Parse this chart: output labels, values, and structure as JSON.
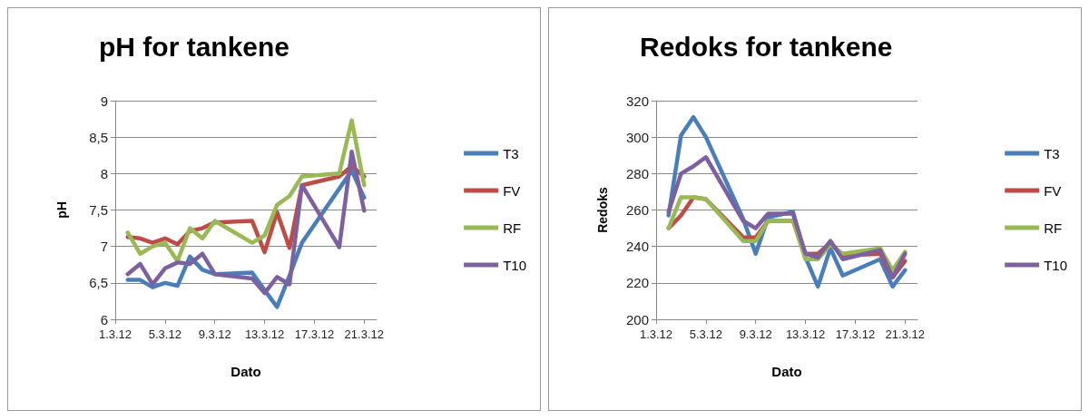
{
  "chart_data": [
    {
      "type": "line",
      "title": "pH for tankene",
      "xlabel": "Dato",
      "ylabel": "pH",
      "xlim": [
        "--03-01",
        "--03-22"
      ],
      "xticks": [
        {
          "value": "--03-01",
          "label": "1.3.12"
        },
        {
          "value": "--03-05",
          "label": "5.3.12"
        },
        {
          "value": "--03-09",
          "label": "9.3.12"
        },
        {
          "value": "--03-13",
          "label": "13.3.12"
        },
        {
          "value": "--03-17",
          "label": "17.3.12"
        },
        {
          "value": "--03-21",
          "label": "21.3.12"
        }
      ],
      "ylim": [
        6,
        9
      ],
      "yticks": [
        6,
        {
          "value": 6.5,
          "label": "6,5"
        },
        7,
        {
          "value": 7.5,
          "label": "7,5"
        },
        8,
        {
          "value": 8.5,
          "label": "8,5"
        },
        9
      ],
      "grid": "y",
      "legend": "right",
      "marker": "none",
      "line_style": "solid",
      "series": [
        {
          "name": "T3",
          "color": "#4a7ebb",
          "x": [
            "--03-02",
            "--03-03",
            "--03-04",
            "--03-05",
            "--03-06",
            "--03-07",
            "--03-08",
            "--03-09",
            "--03-12",
            "--03-13",
            "--03-14",
            "--03-15",
            "--03-16",
            "--03-20",
            "--03-21"
          ],
          "values": [
            6.54,
            6.54,
            6.44,
            6.5,
            6.46,
            6.86,
            6.68,
            6.62,
            6.64,
            6.4,
            6.17,
            6.6,
            7.05,
            8.04,
            7.67
          ]
        },
        {
          "name": "FV",
          "color": "#be4b48",
          "x": [
            "--03-02",
            "--03-03",
            "--03-04",
            "--03-05",
            "--03-06",
            "--03-07",
            "--03-08",
            "--03-09",
            "--03-12",
            "--03-13",
            "--03-14",
            "--03-15",
            "--03-16",
            "--03-19",
            "--03-20",
            "--03-21"
          ],
          "values": [
            7.13,
            7.11,
            7.05,
            7.11,
            7.03,
            7.21,
            7.25,
            7.33,
            7.35,
            6.92,
            7.47,
            6.98,
            7.84,
            7.96,
            8.1,
            7.96
          ]
        },
        {
          "name": "RF",
          "color": "#98b954",
          "x": [
            "--03-02",
            "--03-03",
            "--03-04",
            "--03-05",
            "--03-06",
            "--03-07",
            "--03-08",
            "--03-09",
            "--03-12",
            "--03-13",
            "--03-14",
            "--03-15",
            "--03-16",
            "--03-19",
            "--03-20",
            "--03-21"
          ],
          "values": [
            7.19,
            6.9,
            7.0,
            7.05,
            6.8,
            7.25,
            7.11,
            7.35,
            7.05,
            7.15,
            7.57,
            7.69,
            7.96,
            8.0,
            8.73,
            7.84
          ]
        },
        {
          "name": "T10",
          "color": "#7d60a0",
          "x": [
            "--03-02",
            "--03-03",
            "--03-04",
            "--03-05",
            "--03-06",
            "--03-07",
            "--03-08",
            "--03-09",
            "--03-12",
            "--03-13",
            "--03-14",
            "--03-15",
            "--03-16",
            "--03-19",
            "--03-20",
            "--03-21"
          ],
          "values": [
            6.62,
            6.76,
            6.48,
            6.7,
            6.78,
            6.76,
            6.9,
            6.62,
            6.56,
            6.36,
            6.58,
            6.48,
            7.84,
            6.99,
            8.3,
            7.49
          ]
        }
      ]
    },
    {
      "type": "line",
      "title": "Redoks for tankene",
      "xlabel": "Dato",
      "ylabel": "Redoks",
      "xlim": [
        "--03-01",
        "--03-22"
      ],
      "xticks": [
        {
          "value": "--03-01",
          "label": "1.3.12"
        },
        {
          "value": "--03-05",
          "label": "5.3.12"
        },
        {
          "value": "--03-09",
          "label": "9.3.12"
        },
        {
          "value": "--03-13",
          "label": "13.3.12"
        },
        {
          "value": "--03-17",
          "label": "17.3.12"
        },
        {
          "value": "--03-21",
          "label": "21.3.12"
        }
      ],
      "ylim": [
        200,
        320
      ],
      "yticks": [
        200,
        220,
        240,
        260,
        280,
        300,
        320
      ],
      "grid": "y",
      "legend": "right",
      "marker": "none",
      "line_style": "solid",
      "series": [
        {
          "name": "T3",
          "color": "#4a7ebb",
          "x": [
            "--03-02",
            "--03-03",
            "--03-04",
            "--03-05",
            "--03-08",
            "--03-09",
            "--03-10",
            "--03-12",
            "--03-13",
            "--03-14",
            "--03-15",
            "--03-16",
            "--03-19",
            "--03-20",
            "--03-21"
          ],
          "values": [
            257,
            301,
            311,
            300,
            255,
            236,
            256,
            259,
            234,
            218,
            239,
            224,
            233,
            218,
            227
          ]
        },
        {
          "name": "FV",
          "color": "#be4b48",
          "x": [
            "--03-02",
            "--03-03",
            "--03-04",
            "--03-05",
            "--03-08",
            "--03-09",
            "--03-10",
            "--03-12",
            "--03-13",
            "--03-14",
            "--03-15",
            "--03-16",
            "--03-19",
            "--03-20",
            "--03-21"
          ],
          "values": [
            250,
            257,
            267,
            266,
            245,
            245,
            254,
            254,
            236,
            236,
            242,
            235,
            236,
            223,
            232
          ]
        },
        {
          "name": "RF",
          "color": "#98b954",
          "x": [
            "--03-02",
            "--03-03",
            "--03-04",
            "--03-05",
            "--03-08",
            "--03-09",
            "--03-10",
            "--03-12",
            "--03-13",
            "--03-14",
            "--03-15",
            "--03-16",
            "--03-19",
            "--03-20",
            "--03-21"
          ],
          "values": [
            250,
            267,
            267,
            266,
            243,
            243,
            254,
            254,
            233,
            233,
            241,
            236,
            239,
            227,
            237
          ]
        },
        {
          "name": "T10",
          "color": "#7d60a0",
          "x": [
            "--03-02",
            "--03-03",
            "--03-04",
            "--03-05",
            "--03-08",
            "--03-09",
            "--03-10",
            "--03-12",
            "--03-13",
            "--03-14",
            "--03-15",
            "--03-16",
            "--03-19",
            "--03-20",
            "--03-21"
          ],
          "values": [
            259,
            280,
            284,
            289,
            254,
            250,
            258,
            258,
            236,
            234,
            243,
            233,
            238,
            223,
            236
          ]
        }
      ]
    }
  ]
}
